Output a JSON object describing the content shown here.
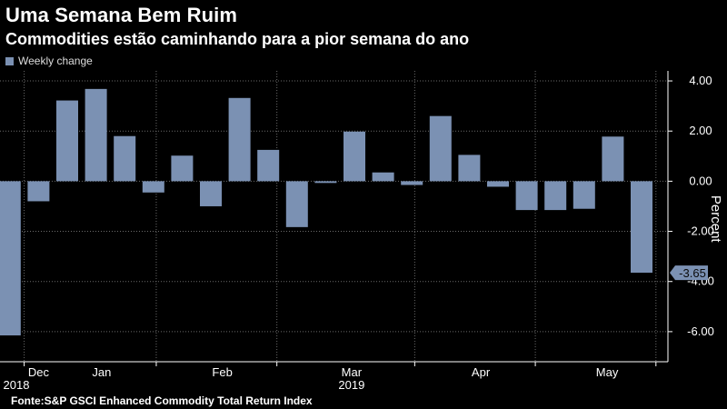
{
  "header": {
    "title": "Uma Semana Bem Ruim",
    "subtitle": "Commodities estão caminhando para a pior semana do ano"
  },
  "legend": {
    "label": "Weekly change"
  },
  "source": "Fonte:S&P GSCI Enhanced Commodity Total Return Index",
  "colors": {
    "bar": "#7b91b3",
    "background": "#000000",
    "grid": "#6a6a6a",
    "axis": "#ffffff",
    "callout": "#7b91b3"
  },
  "chart_data": {
    "type": "bar",
    "title": "Uma Semana Bem Ruim",
    "subtitle": "Commodities estão caminhando para a pior semana do ano",
    "ylabel": "Percent",
    "ylim": [
      -7.2,
      4.4
    ],
    "yticks": [
      4,
      2,
      0,
      -2,
      -4,
      -6
    ],
    "ytick_labels": [
      "4.00",
      "2.00",
      "0.00",
      "-2.00",
      "-4.00",
      "-6.00"
    ],
    "y_axis_side": "right",
    "grid": true,
    "series": [
      {
        "name": "Weekly change",
        "values": [
          -6.15,
          -0.8,
          3.22,
          3.68,
          1.8,
          -0.45,
          1.02,
          -1.0,
          3.32,
          1.25,
          -1.83,
          -0.07,
          1.98,
          0.35,
          -0.15,
          2.6,
          1.05,
          -0.22,
          -1.15,
          -1.15,
          -1.1,
          1.78,
          -3.65
        ]
      }
    ],
    "x_month_labels": [
      {
        "label": "Dec",
        "index": 1
      },
      {
        "label": "Jan",
        "index": 3.2
      },
      {
        "label": "Feb",
        "index": 7.4
      },
      {
        "label": "Mar",
        "index": 11.9
      },
      {
        "label": "Apr",
        "index": 16.4
      },
      {
        "label": "May",
        "index": 20.8
      }
    ],
    "x_month_boundaries": [
      0.5,
      5.1,
      9.3,
      14.1,
      18.3,
      22.5
    ],
    "x_year_labels": [
      {
        "label": "2018",
        "index": -0.1
      },
      {
        "label": "2019",
        "index": 11.9
      }
    ],
    "callout": {
      "label": "-3.65",
      "value": -3.65
    }
  }
}
